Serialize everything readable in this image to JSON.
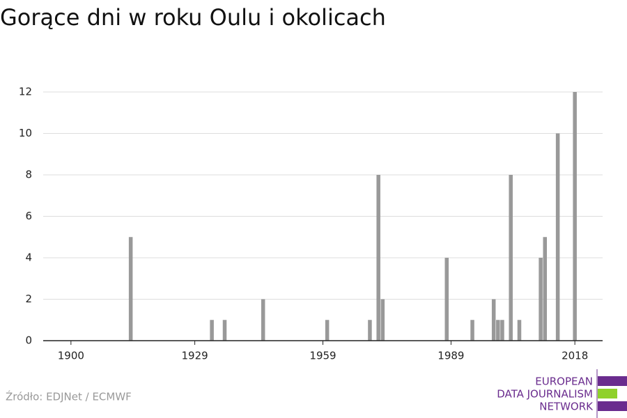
{
  "chart_data": {
    "type": "bar",
    "title": "Gorące dni w roku Oulu i okolicach",
    "x": [
      1914,
      1933,
      1936,
      1945,
      1960,
      1970,
      1972,
      1973,
      1988,
      1994,
      1999,
      2000,
      2001,
      2003,
      2005,
      2010,
      2011,
      2014,
      2018
    ],
    "values": [
      5,
      1,
      1,
      2,
      1,
      1,
      8,
      2,
      4,
      1,
      2,
      1,
      1,
      8,
      1,
      4,
      5,
      10,
      12
    ],
    "color": "#999999",
    "xlim": [
      1893.5,
      2024.5
    ],
    "xticks": [
      1900,
      1929,
      1959,
      1989,
      2018
    ],
    "ylim": [
      0,
      12
    ],
    "yticks": [
      0,
      2,
      4,
      6,
      8,
      10,
      12
    ],
    "grid": true
  },
  "source": "Źródło: EDJNet / ECMWF",
  "logo": {
    "lines": [
      "EUROPEAN",
      "DATA JOURNALISM",
      "NETWORK"
    ]
  }
}
